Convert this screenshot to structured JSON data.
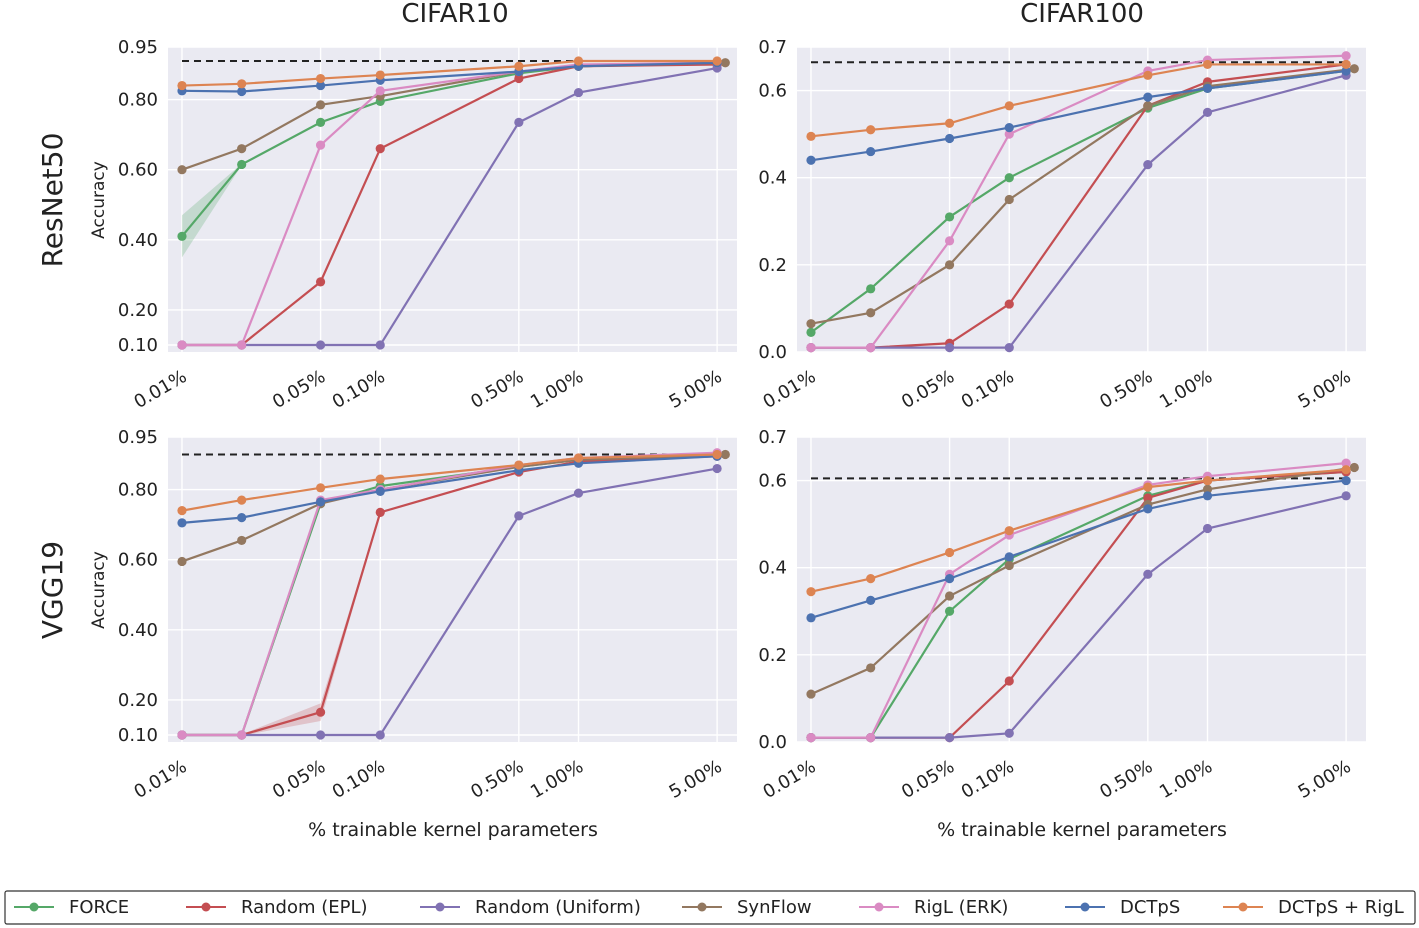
{
  "figure": {
    "col_titles": [
      "CIFAR10",
      "CIFAR100"
    ],
    "row_labels": [
      "ResNet50",
      "VGG19"
    ],
    "xlabel": "% trainable kernel parameters",
    "ylabel": "Accuracy"
  },
  "chart_data": [
    {
      "type": "line",
      "title": "CIFAR10",
      "row": "ResNet50",
      "xlabel": "",
      "ylabel": "Accuracy",
      "xscale": "log",
      "x_ticks": [
        "0.01%",
        "0.05%",
        "0.10%",
        "0.50%",
        "1.00%",
        "5.00%"
      ],
      "y_ticks": [
        "0.10",
        "0.20",
        "0.40",
        "0.60",
        "0.80",
        "0.95"
      ],
      "y_tick_values": [
        0.1,
        0.2,
        0.4,
        0.6,
        0.8,
        0.95
      ],
      "ylim": [
        0.08,
        0.95
      ],
      "dense_baseline": 0.91,
      "series": [
        {
          "name": "FORCE",
          "x": [
            0.01,
            0.02,
            0.05,
            0.1,
            0.5,
            1,
            5
          ],
          "values": [
            0.41,
            0.615,
            0.735,
            0.795,
            0.875,
            0.895,
            0.905
          ],
          "band": [
            0.12,
            0.0,
            0.0,
            0.0,
            0,
            0,
            0
          ]
        },
        {
          "name": "Random (EPL)",
          "x": [
            0.01,
            0.02,
            0.05,
            0.1,
            0.5,
            1,
            5
          ],
          "values": [
            0.1,
            0.1,
            0.28,
            0.66,
            0.86,
            0.895,
            0.9
          ]
        },
        {
          "name": "Random (Uniform)",
          "x": [
            0.01,
            0.02,
            0.05,
            0.1,
            0.5,
            1,
            5
          ],
          "values": [
            0.1,
            0.1,
            0.1,
            0.1,
            0.735,
            0.82,
            0.89
          ]
        },
        {
          "name": "SynFlow",
          "x": [
            0.01,
            0.02,
            0.05,
            0.1,
            0.5,
            1,
            5.5
          ],
          "values": [
            0.6,
            0.66,
            0.785,
            0.81,
            0.88,
            0.895,
            0.905
          ]
        },
        {
          "name": "RigL (ERK)",
          "x": [
            0.01,
            0.02,
            0.05,
            0.1,
            0.5,
            1,
            5
          ],
          "values": [
            0.1,
            0.1,
            0.67,
            0.825,
            0.88,
            0.9,
            0.905
          ]
        },
        {
          "name": "DCTpS",
          "x": [
            0.01,
            0.02,
            0.05,
            0.1,
            0.5,
            1,
            5
          ],
          "values": [
            0.825,
            0.823,
            0.84,
            0.855,
            0.88,
            0.895,
            0.905
          ]
        },
        {
          "name": "DCTpS + RigL",
          "x": [
            0.01,
            0.02,
            0.05,
            0.1,
            0.5,
            1,
            5
          ],
          "values": [
            0.84,
            0.845,
            0.86,
            0.87,
            0.895,
            0.91,
            0.91
          ]
        }
      ]
    },
    {
      "type": "line",
      "title": "CIFAR100",
      "row": "ResNet50",
      "xlabel": "",
      "ylabel": "",
      "xscale": "log",
      "x_ticks": [
        "0.01%",
        "0.05%",
        "0.10%",
        "0.50%",
        "1.00%",
        "5.00%"
      ],
      "y_ticks": [
        "0.0",
        "0.2",
        "0.4",
        "0.6",
        "0.7"
      ],
      "y_tick_values": [
        0.0,
        0.2,
        0.4,
        0.6,
        0.7
      ],
      "ylim": [
        0.0,
        0.7
      ],
      "dense_baseline": 0.665,
      "series": [
        {
          "name": "FORCE",
          "x": [
            0.01,
            0.02,
            0.05,
            0.1,
            0.5,
            1,
            5
          ],
          "values": [
            0.045,
            0.145,
            0.31,
            0.4,
            0.56,
            0.605,
            0.645
          ]
        },
        {
          "name": "Random (EPL)",
          "x": [
            0.01,
            0.02,
            0.05,
            0.1,
            0.5,
            1,
            5
          ],
          "values": [
            0.01,
            0.01,
            0.02,
            0.11,
            0.565,
            0.62,
            0.66
          ]
        },
        {
          "name": "Random (Uniform)",
          "x": [
            0.01,
            0.02,
            0.05,
            0.1,
            0.5,
            1,
            5
          ],
          "values": [
            0.01,
            0.01,
            0.01,
            0.01,
            0.43,
            0.55,
            0.635
          ]
        },
        {
          "name": "SynFlow",
          "x": [
            0.01,
            0.02,
            0.05,
            0.1,
            0.5,
            1,
            5.5
          ],
          "values": [
            0.065,
            0.09,
            0.2,
            0.35,
            0.565,
            0.61,
            0.65
          ]
        },
        {
          "name": "RigL (ERK)",
          "x": [
            0.01,
            0.02,
            0.05,
            0.1,
            0.5,
            1,
            5
          ],
          "values": [
            0.01,
            0.01,
            0.255,
            0.5,
            0.645,
            0.67,
            0.68
          ]
        },
        {
          "name": "DCTpS",
          "x": [
            0.01,
            0.02,
            0.05,
            0.1,
            0.5,
            1,
            5
          ],
          "values": [
            0.44,
            0.46,
            0.49,
            0.515,
            0.585,
            0.605,
            0.645
          ]
        },
        {
          "name": "DCTpS + RigL",
          "x": [
            0.01,
            0.02,
            0.05,
            0.1,
            0.5,
            1,
            5
          ],
          "values": [
            0.495,
            0.51,
            0.525,
            0.565,
            0.635,
            0.66,
            0.66
          ]
        }
      ]
    },
    {
      "type": "line",
      "title": "CIFAR10",
      "row": "VGG19",
      "xlabel": "% trainable kernel parameters",
      "ylabel": "Accuracy",
      "xscale": "log",
      "x_ticks": [
        "0.01%",
        "0.05%",
        "0.10%",
        "0.50%",
        "1.00%",
        "5.00%"
      ],
      "y_ticks": [
        "0.10",
        "0.20",
        "0.40",
        "0.60",
        "0.80",
        "0.95"
      ],
      "y_tick_values": [
        0.1,
        0.2,
        0.4,
        0.6,
        0.8,
        0.95
      ],
      "ylim": [
        0.08,
        0.95
      ],
      "dense_baseline": 0.9,
      "series": [
        {
          "name": "FORCE",
          "x": [
            0.01,
            0.02,
            0.05,
            0.1,
            0.5,
            1,
            5
          ],
          "values": [
            0.1,
            0.1,
            0.76,
            0.81,
            0.865,
            0.885,
            0.9
          ]
        },
        {
          "name": "Random (EPL)",
          "x": [
            0.01,
            0.02,
            0.05,
            0.1,
            0.5,
            1,
            5
          ],
          "values": [
            0.1,
            0.1,
            0.165,
            0.735,
            0.85,
            0.88,
            0.895
          ],
          "band": [
            0,
            0,
            0.05,
            0,
            0,
            0,
            0
          ]
        },
        {
          "name": "Random (Uniform)",
          "x": [
            0.01,
            0.02,
            0.05,
            0.1,
            0.5,
            1,
            5
          ],
          "values": [
            0.1,
            0.1,
            0.1,
            0.1,
            0.725,
            0.79,
            0.86
          ]
        },
        {
          "name": "SynFlow",
          "x": [
            0.01,
            0.02,
            0.05,
            0.1,
            0.5,
            1,
            5.5
          ],
          "values": [
            0.595,
            0.655,
            0.76,
            0.8,
            0.865,
            0.885,
            0.9
          ]
        },
        {
          "name": "RigL (ERK)",
          "x": [
            0.01,
            0.02,
            0.05,
            0.1,
            0.5,
            1,
            5
          ],
          "values": [
            0.1,
            0.1,
            0.77,
            0.8,
            0.87,
            0.89,
            0.905
          ]
        },
        {
          "name": "DCTpS",
          "x": [
            0.01,
            0.02,
            0.05,
            0.1,
            0.5,
            1,
            5
          ],
          "values": [
            0.705,
            0.72,
            0.765,
            0.795,
            0.855,
            0.875,
            0.895
          ]
        },
        {
          "name": "DCTpS + RigL",
          "x": [
            0.01,
            0.02,
            0.05,
            0.1,
            0.5,
            1,
            5
          ],
          "values": [
            0.74,
            0.77,
            0.805,
            0.83,
            0.87,
            0.89,
            0.9
          ]
        }
      ]
    },
    {
      "type": "line",
      "title": "CIFAR100",
      "row": "VGG19",
      "xlabel": "% trainable kernel parameters",
      "ylabel": "",
      "xscale": "log",
      "x_ticks": [
        "0.01%",
        "0.05%",
        "0.10%",
        "0.50%",
        "1.00%",
        "5.00%"
      ],
      "y_ticks": [
        "0.0",
        "0.2",
        "0.4",
        "0.6",
        "0.7"
      ],
      "y_tick_values": [
        0.0,
        0.2,
        0.4,
        0.6,
        0.7
      ],
      "ylim": [
        0.0,
        0.7
      ],
      "dense_baseline": 0.605,
      "series": [
        {
          "name": "FORCE",
          "x": [
            0.01,
            0.02,
            0.05,
            0.1,
            0.5,
            1,
            5
          ],
          "values": [
            0.01,
            0.01,
            0.3,
            0.42,
            0.565,
            0.6,
            0.62
          ]
        },
        {
          "name": "Random (EPL)",
          "x": [
            0.01,
            0.02,
            0.05,
            0.1,
            0.5,
            1,
            5
          ],
          "values": [
            0.01,
            0.01,
            0.01,
            0.14,
            0.56,
            0.6,
            0.62
          ]
        },
        {
          "name": "Random (Uniform)",
          "x": [
            0.01,
            0.02,
            0.05,
            0.1,
            0.5,
            1,
            5
          ],
          "values": [
            0.01,
            0.01,
            0.01,
            0.02,
            0.385,
            0.49,
            0.565
          ]
        },
        {
          "name": "SynFlow",
          "x": [
            0.01,
            0.02,
            0.05,
            0.1,
            0.5,
            1,
            5.5
          ],
          "values": [
            0.11,
            0.17,
            0.335,
            0.405,
            0.545,
            0.58,
            0.63
          ]
        },
        {
          "name": "RigL (ERK)",
          "x": [
            0.01,
            0.02,
            0.05,
            0.1,
            0.5,
            1,
            5
          ],
          "values": [
            0.01,
            0.01,
            0.385,
            0.475,
            0.59,
            0.61,
            0.64
          ]
        },
        {
          "name": "DCTpS",
          "x": [
            0.01,
            0.02,
            0.05,
            0.1,
            0.5,
            1,
            5
          ],
          "values": [
            0.285,
            0.325,
            0.375,
            0.425,
            0.535,
            0.565,
            0.6
          ]
        },
        {
          "name": "DCTpS + RigL",
          "x": [
            0.01,
            0.02,
            0.05,
            0.1,
            0.5,
            1,
            5
          ],
          "values": [
            0.345,
            0.375,
            0.435,
            0.485,
            0.585,
            0.6,
            0.625
          ]
        }
      ]
    }
  ],
  "legend": {
    "placement": "bottom",
    "entries": [
      {
        "name": "FORCE",
        "color": "#55a868"
      },
      {
        "name": "Random (EPL)",
        "color": "#c44e52"
      },
      {
        "name": "Random (Uniform)",
        "color": "#8172b3"
      },
      {
        "name": "SynFlow",
        "color": "#937860"
      },
      {
        "name": "RigL (ERK)",
        "color": "#da8bc3"
      },
      {
        "name": "DCTpS",
        "color": "#4c72b0"
      },
      {
        "name": "DCTpS + RigL",
        "color": "#dd8452"
      }
    ]
  },
  "colors": {
    "axes_bg": "#eaeaf2",
    "grid": "#ffffff",
    "baseline": "#222222"
  }
}
